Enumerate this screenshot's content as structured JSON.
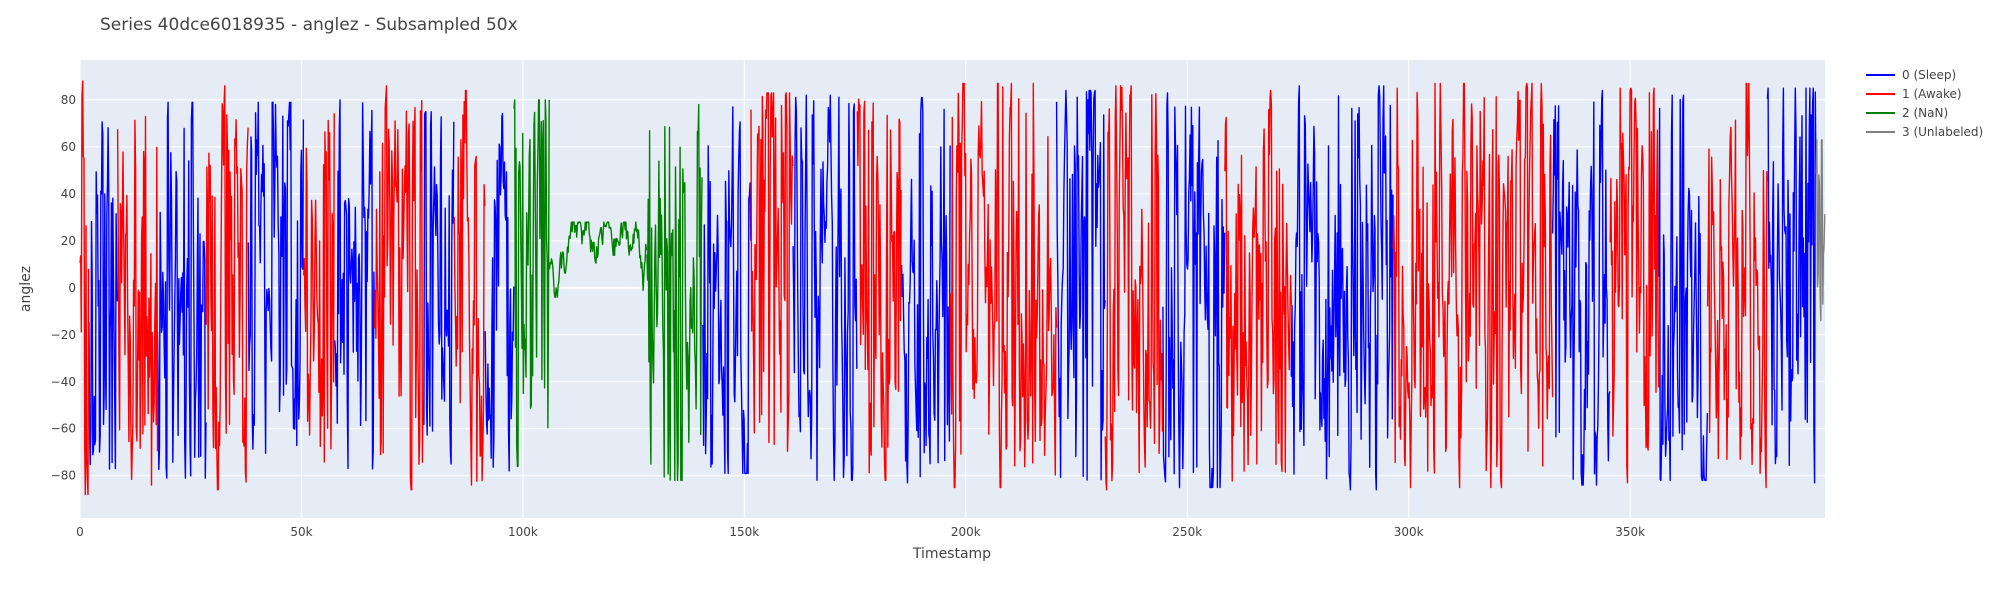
{
  "chart_data": {
    "type": "line",
    "title": "Series 40dce6018935 - anglez - Subsampled 50x",
    "xlabel": "Timestamp",
    "ylabel": "anglez",
    "xlim": [
      0,
      394000
    ],
    "ylim": [
      -98,
      97
    ],
    "x_ticks": [
      0,
      50000,
      100000,
      150000,
      200000,
      250000,
      300000,
      350000
    ],
    "x_tick_labels": [
      "0",
      "50k",
      "100k",
      "150k",
      "200k",
      "250k",
      "300k",
      "350k"
    ],
    "y_ticks": [
      -80,
      -60,
      -40,
      -20,
      0,
      20,
      40,
      60,
      80
    ],
    "y_tick_labels": [
      "−80",
      "−60",
      "−40",
      "−20",
      "0",
      "20",
      "40",
      "60",
      "80"
    ],
    "grid": true,
    "legend_position": "top-right",
    "background": "#e5ecf6",
    "series": [
      {
        "name": "0 (Sleep)",
        "color": "#0000ff",
        "segments": [
          {
            "x0": 2000,
            "x1": 8500,
            "mean": -5,
            "amp": 78
          },
          {
            "x0": 17500,
            "x1": 28500,
            "mean": -5,
            "amp": 80
          },
          {
            "x0": 38000,
            "x1": 50500,
            "mean": 5,
            "amp": 78
          },
          {
            "x0": 57500,
            "x1": 66500,
            "mean": 0,
            "amp": 80
          },
          {
            "x0": 77500,
            "x1": 84500,
            "mean": 0,
            "amp": 75
          },
          {
            "x0": 91500,
            "x1": 98000,
            "mean": 0,
            "amp": 78
          },
          {
            "x0": 140500,
            "x1": 151500,
            "mean": -5,
            "amp": 78
          },
          {
            "x0": 161000,
            "x1": 175500,
            "mean": 0,
            "amp": 82
          },
          {
            "x0": 185500,
            "x1": 196500,
            "mean": -5,
            "amp": 82
          },
          {
            "x0": 220500,
            "x1": 231500,
            "mean": 0,
            "amp": 84
          },
          {
            "x0": 244500,
            "x1": 258500,
            "mean": -5,
            "amp": 84
          },
          {
            "x0": 273500,
            "x1": 296500,
            "mean": 0,
            "amp": 86
          },
          {
            "x0": 332500,
            "x1": 345500,
            "mean": 0,
            "amp": 84
          },
          {
            "x0": 356500,
            "x1": 367500,
            "mean": 0,
            "amp": 82
          },
          {
            "x0": 381000,
            "x1": 392000,
            "mean": 5,
            "amp": 84
          }
        ]
      },
      {
        "name": "1 (Awake)",
        "color": "#ff0000",
        "segments": [
          {
            "x0": 0,
            "x1": 2000,
            "mean": 0,
            "amp": 88
          },
          {
            "x0": 8500,
            "x1": 17500,
            "mean": 0,
            "amp": 86
          },
          {
            "x0": 28500,
            "x1": 38000,
            "mean": 0,
            "amp": 86
          },
          {
            "x0": 50500,
            "x1": 57500,
            "mean": 0,
            "amp": 80
          },
          {
            "x0": 66500,
            "x1": 77500,
            "mean": 0,
            "amp": 86
          },
          {
            "x0": 84500,
            "x1": 91500,
            "mean": 0,
            "amp": 84
          },
          {
            "x0": 151500,
            "x1": 161000,
            "mean": 5,
            "amp": 82
          },
          {
            "x0": 175500,
            "x1": 185500,
            "mean": 0,
            "amp": 82
          },
          {
            "x0": 196500,
            "x1": 220500,
            "mean": 5,
            "amp": 86
          },
          {
            "x0": 231500,
            "x1": 244500,
            "mean": 0,
            "amp": 86
          },
          {
            "x0": 258500,
            "x1": 273500,
            "mean": 0,
            "amp": 84
          },
          {
            "x0": 296500,
            "x1": 332500,
            "mean": 5,
            "amp": 86
          },
          {
            "x0": 345500,
            "x1": 356500,
            "mean": 5,
            "amp": 84
          },
          {
            "x0": 367500,
            "x1": 381000,
            "mean": 5,
            "amp": 86
          }
        ]
      },
      {
        "name": "2 (NaN)",
        "color": "#008000",
        "segments": [
          {
            "x0": 98000,
            "x1": 106000,
            "mean": 10,
            "amp": 78
          },
          {
            "x0": 106000,
            "x1": 128000,
            "mean": 12,
            "amp": 16
          },
          {
            "x0": 128000,
            "x1": 140500,
            "mean": -10,
            "amp": 80
          }
        ]
      },
      {
        "name": "3 (Unlabeled)",
        "color": "#808080",
        "segments": [
          {
            "x0": 392000,
            "x1": 394000,
            "mean": 40,
            "amp": 55
          }
        ]
      }
    ]
  }
}
